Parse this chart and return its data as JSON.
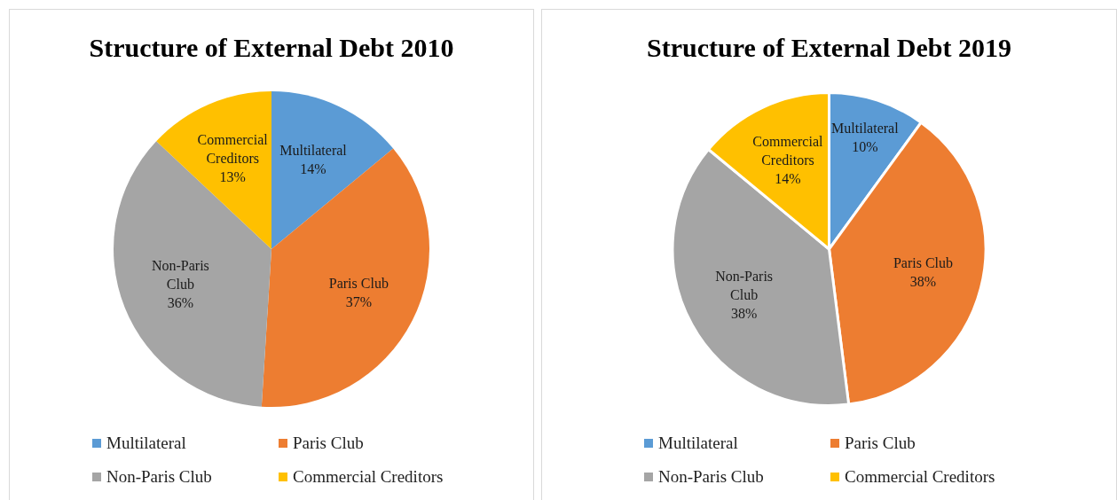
{
  "chart_data": [
    {
      "type": "pie",
      "title": "Structure of External Debt 2010",
      "categories": [
        "Multilateral",
        "Paris Club",
        "Non-Paris Club",
        "Commercial Creditors"
      ],
      "values": [
        14,
        37,
        36,
        13
      ],
      "value_labels": [
        "14%",
        "37%",
        "36%",
        "13%"
      ],
      "colors": [
        "#5b9bd5",
        "#ed7d31",
        "#a5a5a5",
        "#ffc000"
      ],
      "legend": "bottom"
    },
    {
      "type": "pie",
      "title": "Structure of External Debt 2019",
      "categories": [
        "Multilateral",
        "Paris Club",
        "Non-Paris Club",
        "Commercial Creditors"
      ],
      "values": [
        10,
        38,
        38,
        14
      ],
      "value_labels": [
        "10%",
        "38%",
        "38%",
        "14%"
      ],
      "colors": [
        "#5b9bd5",
        "#ed7d31",
        "#a5a5a5",
        "#ffc000"
      ],
      "legend": "bottom"
    }
  ]
}
